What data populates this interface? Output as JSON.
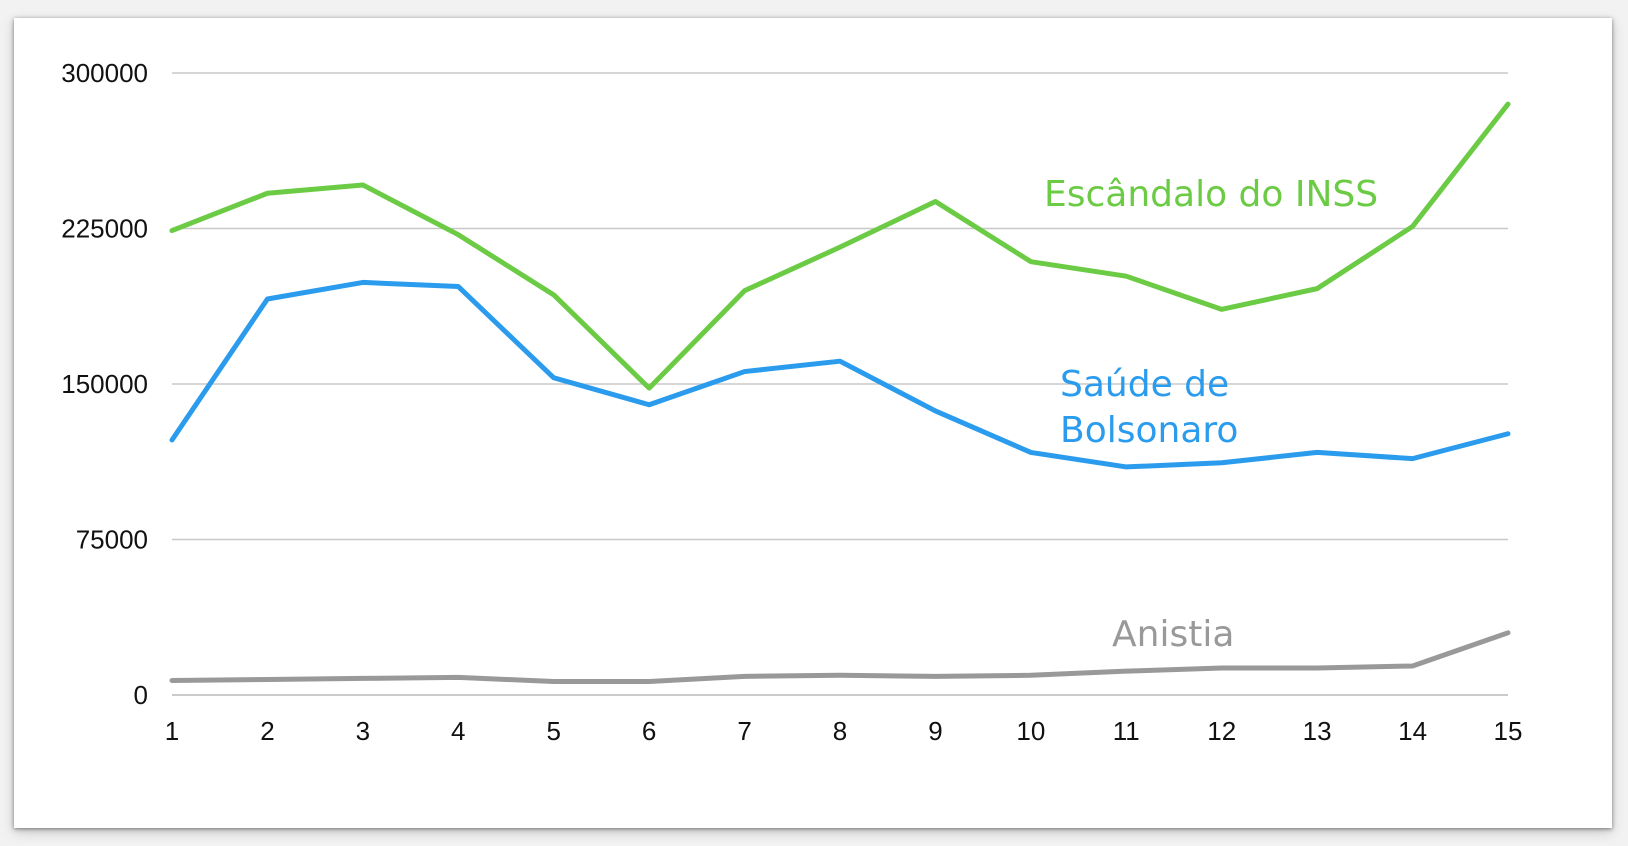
{
  "chart_data": {
    "type": "line",
    "title": "",
    "xlabel": "",
    "ylabel": "",
    "x": [
      1,
      2,
      3,
      4,
      5,
      6,
      7,
      8,
      9,
      10,
      11,
      12,
      13,
      14,
      15
    ],
    "x_tick_labels": [
      "1",
      "2",
      "3",
      "4",
      "5",
      "6",
      "7",
      "8",
      "9",
      "10",
      "11",
      "12",
      "13",
      "14",
      "15"
    ],
    "y_ticks": [
      0,
      75000,
      150000,
      225000,
      300000
    ],
    "y_tick_labels": [
      "0",
      "75000",
      "150000",
      "225000",
      "300000"
    ],
    "ylim": [
      0,
      300000
    ],
    "grid": true,
    "legend": "inline labels",
    "series": [
      {
        "name": "Escândalo do INSS",
        "color": "#6ccb45",
        "values": [
          224000,
          242000,
          246000,
          222000,
          193000,
          148000,
          195000,
          216000,
          238000,
          209000,
          202000,
          186000,
          196000,
          226000,
          285000
        ]
      },
      {
        "name": "Saúde de Bolsonaro",
        "color": "#2b9ced",
        "values": [
          123000,
          191000,
          199000,
          197000,
          153000,
          140000,
          156000,
          161000,
          137000,
          117000,
          110000,
          112000,
          117000,
          114000,
          126000
        ]
      },
      {
        "name": "Anistia",
        "color": "#999999",
        "values": [
          7000,
          7500,
          8000,
          8500,
          6500,
          6500,
          9000,
          9500,
          9000,
          9500,
          11500,
          13000,
          13000,
          14000,
          30000
        ]
      }
    ]
  }
}
